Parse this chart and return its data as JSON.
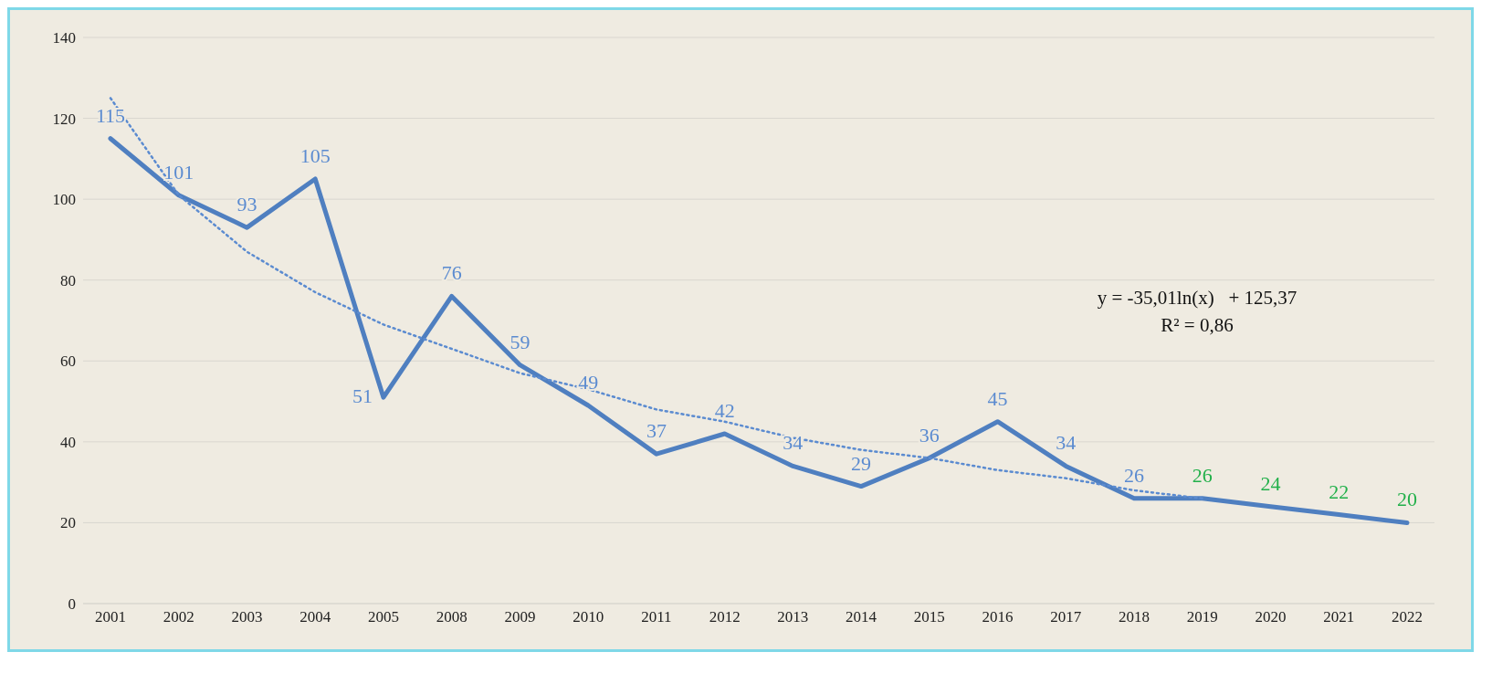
{
  "chart_data": {
    "type": "line",
    "categories": [
      "2001",
      "2002",
      "2003",
      "2004",
      "2005",
      "2008",
      "2009",
      "2010",
      "2011",
      "2012",
      "2013",
      "2014",
      "2015",
      "2016",
      "2017",
      "2018",
      "2019",
      "2020",
      "2021",
      "2022"
    ],
    "series": [
      {
        "color": "#4f7fc0",
        "values": [
          115,
          101,
          93,
          105,
          51,
          76,
          59,
          49,
          37,
          42,
          34,
          29,
          36,
          45,
          34,
          26,
          26,
          24,
          22,
          20
        ],
        "value_labels": [
          "115",
          "101",
          "93",
          "105",
          "51",
          "76",
          "59",
          "49",
          "37",
          "42",
          "34",
          "29",
          "36",
          "45",
          "34",
          "26",
          "26",
          "24",
          "22",
          "20"
        ],
        "colors": [
          "#5b8bd0",
          "#5b8bd0",
          "#5b8bd0",
          "#5b8bd0",
          "#5b8bd0",
          "#5b8bd0",
          "#5b8bd0",
          "#5b8bd0",
          "#5b8bd0",
          "#5b8bd0",
          "#5b8bd0",
          "#5b8bd0",
          "#5b8bd0",
          "#5b8bd0",
          "#5b8bd0",
          "#5b8bd0",
          "#22b04a",
          "#22b04a",
          "#22b04a",
          "#22b04a"
        ]
      },
      {
        "type": "line",
        "line_style": "dotted",
        "color": "#5b8bd0",
        "values": [
          125,
          101,
          87,
          77,
          69,
          63,
          57,
          53,
          48,
          45,
          41,
          38,
          36,
          33,
          31,
          28,
          26,
          null,
          null,
          null
        ]
      }
    ],
    "ylim": [
      0,
      140
    ],
    "yticks": [
      0,
      20,
      40,
      60,
      80,
      100,
      120,
      140
    ],
    "grid": "y",
    "line_style": "solid",
    "marker": "none",
    "legend": false,
    "annotations": [
      "y = -35,01ln(x)   + 125,37",
      "R² = 0,86"
    ]
  }
}
